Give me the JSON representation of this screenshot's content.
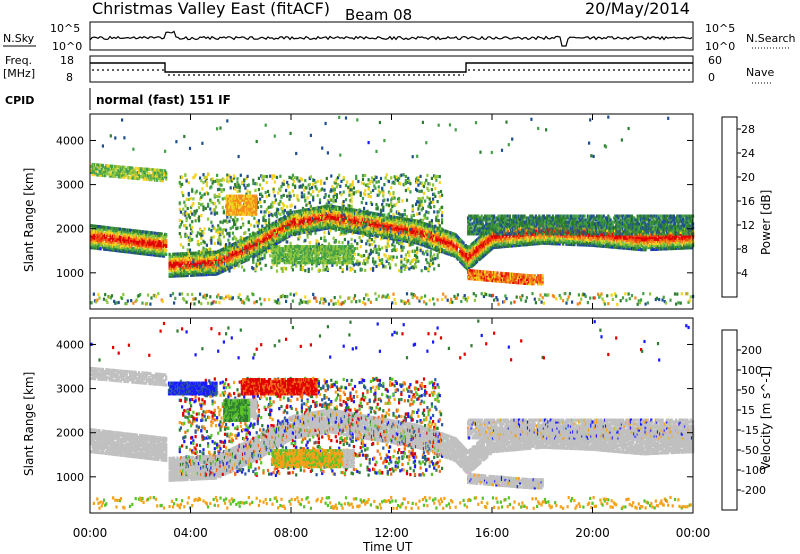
{
  "header": {
    "title": "Christmas Valley East (fitACF)",
    "beam": "Beam 08",
    "date": "20/May/2014"
  },
  "top_panels": {
    "nsky_label": "N.Sky",
    "nsearch_label": "N.Search",
    "nsky_ticks": [
      "10^5",
      "10^0"
    ],
    "freq_label": "Freq.",
    "freq_unit": "[MHz]",
    "freq_ticks": [
      "18",
      "8"
    ],
    "nave_label": "Nave",
    "nave_ticks": [
      "60",
      "0"
    ],
    "cpid_label": "CPID",
    "cpid_text": "normal (fast) 151 IF"
  },
  "colors": {
    "power": [
      "#1a1aff",
      "#1f4f8f",
      "#2e7d32",
      "#43a047",
      "#8ec63f",
      "#f5d31f",
      "#f28c1c",
      "#ef4a14",
      "#e00000"
    ],
    "velocity": [
      "#1a1aff",
      "#2c5aa0",
      "#2e7d32",
      "#58c22a",
      "#c0c0c0",
      "#c0c0c0",
      "#f5a21a",
      "#f26a12",
      "#e00000"
    ]
  },
  "chart_data": [
    {
      "type": "heatmap",
      "title": "Power",
      "xlabel": "Time UT",
      "ylabel": "Slant Range [km]",
      "xlim": [
        "00:00",
        "24:00"
      ],
      "ylim": [
        180,
        4600
      ],
      "x_ticks": [
        "00:00",
        "04:00",
        "08:00",
        "12:00",
        "16:00",
        "20:00",
        "00:00"
      ],
      "y_ticks": [
        1000,
        2000,
        3000,
        4000
      ],
      "colorbar_label": "Power [dB]",
      "colorbar_ticks": [
        4,
        8,
        12,
        16,
        20,
        24,
        28
      ],
      "colorbar_range": [
        0,
        30
      ],
      "bands": [
        {
          "name": "main echo band",
          "x": [
            0,
            3,
            3.1,
            5,
            6.5,
            8,
            9.5,
            11,
            13,
            14.5,
            15,
            16,
            18,
            20,
            22,
            24
          ],
          "y": [
            1800,
            1600,
            1150,
            1200,
            1600,
            2100,
            2250,
            2100,
            1900,
            1600,
            1300,
            1800,
            1900,
            1850,
            1750,
            1800
          ],
          "power": 26
        },
        {
          "name": "upper band",
          "x": [
            0,
            3
          ],
          "y": [
            3300,
            3150
          ],
          "power": 14
        },
        {
          "name": "lower band",
          "x": [
            15,
            17.5
          ],
          "y": [
            900,
            780
          ],
          "power": 22
        },
        {
          "name": "orange patch",
          "x": [
            5.5,
            6.5
          ],
          "y": [
            2400,
            2600
          ],
          "power": 20
        }
      ]
    },
    {
      "type": "heatmap",
      "title": "Velocity",
      "xlabel": "Time UT",
      "ylabel": "Slant Range [km]",
      "xlim": [
        "00:00",
        "24:00"
      ],
      "ylim": [
        180,
        4600
      ],
      "x_ticks": [
        "00:00",
        "04:00",
        "08:00",
        "12:00",
        "16:00",
        "20:00",
        "00:00"
      ],
      "y_ticks": [
        1000,
        2000,
        3000,
        4000
      ],
      "colorbar_label": "Velocity [m s^-1]",
      "colorbar_ticks": [
        200,
        100,
        50,
        15,
        -15,
        -50,
        -100,
        -200
      ],
      "bands": [
        {
          "name": "ground scatter",
          "velocity": 0
        },
        {
          "name": "blue patch",
          "x": [
            3,
            5
          ],
          "y": [
            3000,
            2900
          ],
          "velocity": 180
        },
        {
          "name": "red patch",
          "x": [
            6,
            9
          ],
          "y": [
            3100,
            2950
          ],
          "velocity": -200
        },
        {
          "name": "orange patch",
          "x": [
            7,
            10
          ],
          "y": [
            1400,
            1350
          ],
          "velocity": -60
        }
      ]
    }
  ]
}
